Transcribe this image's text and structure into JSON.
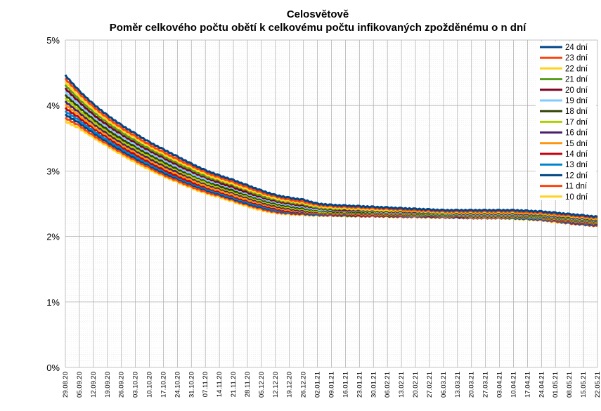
{
  "chart_data": {
    "type": "line",
    "title": "Celosvětově",
    "subtitle": "Poměr celkového počtu obětí k celkovému počtu infikovaných zpožděnému o n dní",
    "ylim": [
      0,
      5
    ],
    "y_ticks": [
      {
        "value": 0,
        "label": "0%"
      },
      {
        "value": 1,
        "label": "1%"
      },
      {
        "value": 2,
        "label": "2%"
      },
      {
        "value": 3,
        "label": "3%"
      },
      {
        "value": 4,
        "label": "4%"
      },
      {
        "value": 5,
        "label": "5%"
      }
    ],
    "y_unit": "%",
    "x_tick_labels": [
      "29.08.20",
      "05.09.20",
      "12.09.20",
      "19.09.20",
      "26.09.20",
      "03.10.20",
      "10.10.20",
      "17.10.20",
      "24.10.20",
      "31.10.20",
      "07.11.20",
      "14.11.20",
      "21.11.20",
      "28.11.20",
      "05.12.20",
      "12.12.20",
      "19.12.20",
      "26.12.20",
      "02.01.21",
      "09.01.21",
      "16.01.21",
      "23.01.21",
      "30.01.21",
      "06.02.21",
      "13.02.21",
      "20.02.21",
      "27.02.21",
      "06.03.21",
      "13.03.21",
      "20.03.21",
      "27.03.21",
      "03.04.21",
      "10.04.21",
      "17.04.21",
      "24.04.21",
      "01.05.21",
      "08.05.21",
      "15.05.21",
      "22.05.21"
    ],
    "grid": true,
    "legend_position": "top-right",
    "x": [
      "29.08.20",
      "05.09.20",
      "12.09.20",
      "19.09.20",
      "26.09.20",
      "03.10.20",
      "10.10.20",
      "17.10.20",
      "24.10.20",
      "31.10.20",
      "07.11.20",
      "14.11.20",
      "21.11.20",
      "28.11.20",
      "05.12.20",
      "12.12.20",
      "19.12.20",
      "26.12.20",
      "02.01.21",
      "09.01.21",
      "16.01.21",
      "23.01.21",
      "30.01.21",
      "06.02.21",
      "13.02.21",
      "20.02.21",
      "27.02.21",
      "06.03.21",
      "13.03.21",
      "20.03.21",
      "27.03.21",
      "03.04.21",
      "10.04.21",
      "17.04.21",
      "24.04.21",
      "01.05.21",
      "08.05.21",
      "15.05.21",
      "22.05.21"
    ],
    "series": [
      {
        "name": "24 dní",
        "color": "#004586",
        "values": [
          4.46,
          4.22,
          4.02,
          3.85,
          3.7,
          3.57,
          3.44,
          3.33,
          3.22,
          3.11,
          3.01,
          2.93,
          2.86,
          2.78,
          2.7,
          2.63,
          2.59,
          2.56,
          2.5,
          2.48,
          2.47,
          2.46,
          2.45,
          2.44,
          2.43,
          2.42,
          2.41,
          2.4,
          2.4,
          2.4,
          2.4,
          2.4,
          2.4,
          2.39,
          2.38,
          2.36,
          2.34,
          2.32,
          2.3
        ]
      },
      {
        "name": "23 dní",
        "color": "#ff420e",
        "values": [
          4.41,
          4.18,
          3.98,
          3.81,
          3.66,
          3.53,
          3.4,
          3.29,
          3.18,
          3.08,
          2.98,
          2.9,
          2.83,
          2.75,
          2.67,
          2.61,
          2.56,
          2.53,
          2.48,
          2.46,
          2.45,
          2.44,
          2.43,
          2.42,
          2.41,
          2.4,
          2.39,
          2.38,
          2.38,
          2.38,
          2.38,
          2.38,
          2.38,
          2.37,
          2.36,
          2.34,
          2.32,
          2.3,
          2.28
        ]
      },
      {
        "name": "22 dní",
        "color": "#ffd320",
        "values": [
          4.36,
          4.13,
          3.94,
          3.77,
          3.63,
          3.5,
          3.37,
          3.26,
          3.15,
          3.05,
          2.95,
          2.87,
          2.8,
          2.72,
          2.65,
          2.58,
          2.54,
          2.51,
          2.46,
          2.44,
          2.43,
          2.42,
          2.41,
          2.4,
          2.4,
          2.39,
          2.38,
          2.37,
          2.37,
          2.37,
          2.37,
          2.37,
          2.37,
          2.36,
          2.35,
          2.33,
          2.31,
          2.29,
          2.27
        ]
      },
      {
        "name": "21 dní",
        "color": "#579d1c",
        "values": [
          4.31,
          4.09,
          3.9,
          3.74,
          3.59,
          3.46,
          3.34,
          3.23,
          3.12,
          3.02,
          2.92,
          2.85,
          2.78,
          2.7,
          2.62,
          2.56,
          2.52,
          2.49,
          2.44,
          2.42,
          2.42,
          2.41,
          2.4,
          2.39,
          2.39,
          2.38,
          2.37,
          2.36,
          2.36,
          2.36,
          2.36,
          2.36,
          2.36,
          2.35,
          2.34,
          2.32,
          2.3,
          2.28,
          2.26
        ]
      },
      {
        "name": "20 dní",
        "color": "#7e0021",
        "values": [
          4.26,
          4.05,
          3.86,
          3.7,
          3.56,
          3.43,
          3.31,
          3.2,
          3.09,
          2.99,
          2.9,
          2.82,
          2.75,
          2.67,
          2.6,
          2.54,
          2.5,
          2.47,
          2.43,
          2.41,
          2.4,
          2.4,
          2.39,
          2.38,
          2.38,
          2.37,
          2.36,
          2.36,
          2.35,
          2.35,
          2.35,
          2.35,
          2.35,
          2.34,
          2.33,
          2.31,
          2.29,
          2.27,
          2.25
        ]
      },
      {
        "name": "19 dní",
        "color": "#83caff",
        "values": [
          4.21,
          4.01,
          3.83,
          3.67,
          3.53,
          3.4,
          3.28,
          3.17,
          3.06,
          2.96,
          2.87,
          2.8,
          2.73,
          2.65,
          2.58,
          2.52,
          2.48,
          2.45,
          2.41,
          2.4,
          2.39,
          2.39,
          2.38,
          2.37,
          2.37,
          2.36,
          2.35,
          2.35,
          2.34,
          2.34,
          2.34,
          2.34,
          2.34,
          2.33,
          2.32,
          2.3,
          2.28,
          2.26,
          2.24
        ]
      },
      {
        "name": "18 dní",
        "color": "#314004",
        "values": [
          4.16,
          3.97,
          3.79,
          3.63,
          3.49,
          3.37,
          3.25,
          3.14,
          3.03,
          2.94,
          2.85,
          2.77,
          2.7,
          2.63,
          2.56,
          2.5,
          2.46,
          2.43,
          2.4,
          2.38,
          2.38,
          2.37,
          2.37,
          2.36,
          2.36,
          2.35,
          2.34,
          2.34,
          2.33,
          2.33,
          2.33,
          2.33,
          2.33,
          2.32,
          2.31,
          2.29,
          2.27,
          2.25,
          2.23
        ]
      },
      {
        "name": "17 dní",
        "color": "#aecf00",
        "values": [
          4.11,
          3.93,
          3.75,
          3.6,
          3.46,
          3.34,
          3.22,
          3.11,
          3.01,
          2.91,
          2.82,
          2.75,
          2.68,
          2.61,
          2.54,
          2.48,
          2.44,
          2.41,
          2.38,
          2.37,
          2.37,
          2.36,
          2.36,
          2.35,
          2.35,
          2.34,
          2.33,
          2.33,
          2.32,
          2.32,
          2.32,
          2.32,
          2.32,
          2.31,
          2.3,
          2.28,
          2.26,
          2.24,
          2.22
        ]
      },
      {
        "name": "16 dní",
        "color": "#4b1f6f",
        "values": [
          4.06,
          3.89,
          3.72,
          3.57,
          3.43,
          3.31,
          3.19,
          3.08,
          2.98,
          2.89,
          2.8,
          2.73,
          2.66,
          2.59,
          2.52,
          2.46,
          2.42,
          2.39,
          2.37,
          2.36,
          2.36,
          2.35,
          2.35,
          2.34,
          2.34,
          2.33,
          2.32,
          2.32,
          2.31,
          2.31,
          2.31,
          2.31,
          2.31,
          2.3,
          2.29,
          2.27,
          2.25,
          2.23,
          2.21
        ]
      },
      {
        "name": "15 dní",
        "color": "#ff950e",
        "values": [
          4.01,
          3.85,
          3.68,
          3.54,
          3.4,
          3.28,
          3.16,
          3.05,
          2.95,
          2.86,
          2.77,
          2.7,
          2.63,
          2.56,
          2.5,
          2.44,
          2.4,
          2.38,
          2.36,
          2.35,
          2.35,
          2.34,
          2.34,
          2.33,
          2.33,
          2.32,
          2.32,
          2.31,
          2.31,
          2.3,
          2.3,
          2.3,
          2.3,
          2.29,
          2.28,
          2.26,
          2.24,
          2.22,
          2.2
        ]
      },
      {
        "name": "14 dní",
        "color": "#c5000b",
        "values": [
          3.96,
          3.81,
          3.65,
          3.51,
          3.37,
          3.25,
          3.13,
          3.02,
          2.92,
          2.83,
          2.75,
          2.68,
          2.61,
          2.54,
          2.48,
          2.42,
          2.38,
          2.37,
          2.35,
          2.34,
          2.34,
          2.33,
          2.33,
          2.32,
          2.32,
          2.32,
          2.31,
          2.31,
          2.3,
          2.3,
          2.3,
          2.3,
          2.3,
          2.29,
          2.28,
          2.25,
          2.23,
          2.21,
          2.19
        ]
      },
      {
        "name": "13 dní",
        "color": "#0084d1",
        "values": [
          3.91,
          3.77,
          3.61,
          3.47,
          3.34,
          3.22,
          3.1,
          3.0,
          2.9,
          2.81,
          2.73,
          2.66,
          2.59,
          2.52,
          2.46,
          2.4,
          2.37,
          2.36,
          2.34,
          2.33,
          2.33,
          2.33,
          2.32,
          2.32,
          2.31,
          2.31,
          2.31,
          2.3,
          2.3,
          2.29,
          2.29,
          2.29,
          2.29,
          2.28,
          2.27,
          2.24,
          2.22,
          2.2,
          2.18
        ]
      },
      {
        "name": "12 dní",
        "color": "#004586",
        "values": [
          3.86,
          3.73,
          3.58,
          3.44,
          3.31,
          3.19,
          3.08,
          2.97,
          2.88,
          2.79,
          2.71,
          2.64,
          2.57,
          2.5,
          2.44,
          2.39,
          2.36,
          2.35,
          2.33,
          2.33,
          2.32,
          2.32,
          2.32,
          2.31,
          2.31,
          2.31,
          2.3,
          2.3,
          2.29,
          2.29,
          2.29,
          2.29,
          2.28,
          2.27,
          2.26,
          2.24,
          2.21,
          2.19,
          2.17
        ]
      },
      {
        "name": "11 dní",
        "color": "#ff420e",
        "values": [
          3.81,
          3.69,
          3.54,
          3.41,
          3.28,
          3.16,
          3.05,
          2.94,
          2.85,
          2.76,
          2.68,
          2.62,
          2.55,
          2.48,
          2.42,
          2.37,
          2.35,
          2.34,
          2.33,
          2.32,
          2.32,
          2.31,
          2.31,
          2.31,
          2.3,
          2.3,
          2.3,
          2.29,
          2.29,
          2.28,
          2.28,
          2.28,
          2.28,
          2.27,
          2.25,
          2.23,
          2.2,
          2.18,
          2.16
        ]
      },
      {
        "name": "10 dní",
        "color": "#ffd320",
        "values": [
          3.76,
          3.65,
          3.51,
          3.38,
          3.25,
          3.13,
          3.02,
          2.92,
          2.83,
          2.74,
          2.66,
          2.6,
          2.53,
          2.46,
          2.4,
          2.36,
          2.34,
          2.33,
          2.32,
          2.32,
          2.31,
          2.31,
          2.31,
          2.3,
          2.3,
          2.3,
          2.29,
          2.29,
          2.29,
          2.28,
          2.28,
          2.28,
          2.27,
          2.26,
          2.25,
          2.22,
          2.2,
          2.18,
          2.16
        ]
      }
    ]
  }
}
